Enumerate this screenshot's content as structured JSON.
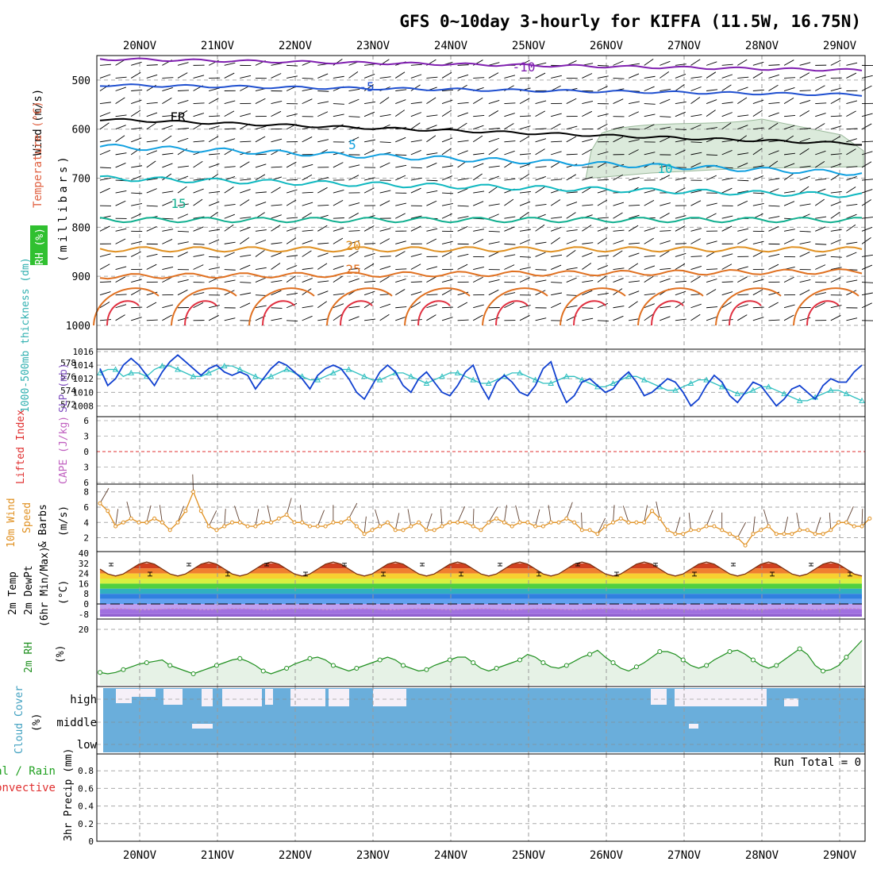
{
  "title": "GFS 0~10day 3-hourly for KIFFA (11.5W, 16.75N)",
  "dates": [
    "20NOV",
    "21NOV",
    "22NOV",
    "23NOV",
    "24NOV",
    "25NOV",
    "26NOV",
    "27NOV",
    "28NOV",
    "29NOV"
  ],
  "panels": {
    "upper": {
      "label_wind": "Wind (m/s)",
      "label_temp": "Temperature (°C)",
      "label_rh": "RH (%)",
      "axis_label": "(millibars)"
    },
    "slp": {
      "label_thk": "1000-500mb thickness (dm)",
      "label_slp": "SLP (mb)"
    },
    "li": {
      "label_li": "Lifted Index",
      "label_cape": "CAPE (J/kg)"
    },
    "wind10": {
      "label_a": "10m Wind",
      "label_b": "Speed",
      "label_c": "& Barbs",
      "unit": "(m/s)"
    },
    "temp2": {
      "label_a": "2m Temp",
      "label_b": "2m DewPt",
      "label_c": "(6hr Min/Max)",
      "unit": "(°C)"
    },
    "rh2": {
      "label": "2m RH",
      "unit": "(%)"
    },
    "cloud": {
      "label": "Cloud Cover",
      "unit": "(%)",
      "levels": [
        "high",
        "middle",
        "low"
      ]
    },
    "precip": {
      "label_a": "Total / Rain",
      "label_b": "Convective",
      "label_c": "3hr Precip (mm)",
      "run_total": "Run Total = 0"
    }
  },
  "chart_data": [
    {
      "type": "line",
      "panel": "upper_air",
      "ylabel": "millibars",
      "yticks": [
        500,
        600,
        700,
        800,
        900,
        1000
      ],
      "ylim": [
        450,
        1000
      ],
      "contour_labels": [
        "-10",
        "-5",
        "FR",
        "5",
        "10",
        "15",
        "20",
        "25"
      ],
      "isotherms": [
        {
          "label": "-10",
          "color": "#8020b0",
          "p_start": 457,
          "p_end": 480
        },
        {
          "label": "-5",
          "color": "#2050d0",
          "p_start": 510,
          "p_end": 530
        },
        {
          "label": "FR",
          "color": "#000000",
          "p_start": 580,
          "p_end": 630
        },
        {
          "label": "5",
          "color": "#10a0e0",
          "p_start": 635,
          "p_end": 690
        },
        {
          "label": "10",
          "color": "#10b8c0",
          "p_start": 700,
          "p_end": 735
        },
        {
          "label": "15",
          "color": "#10b090",
          "p_start": 785,
          "p_end": 785
        },
        {
          "label": "20",
          "color": "#e09020",
          "p_start": 845,
          "p_end": 845
        },
        {
          "label": "25",
          "color": "#e07020",
          "p_start": 900,
          "p_end": 890
        }
      ]
    },
    {
      "type": "line",
      "panel": "slp_thickness",
      "yticks_left": [
        572,
        574,
        576,
        578
      ],
      "yticks_right": [
        1008,
        1010,
        1012,
        1014,
        1016
      ],
      "ylim_left": [
        571,
        579
      ],
      "ylim_right": [
        1007,
        1016
      ],
      "series": [
        {
          "name": "SLP (mb)",
          "color": "#1040d0",
          "values": [
            1013.5,
            1011,
            1012,
            1014,
            1015,
            1014,
            1012.5,
            1011,
            1013,
            1014.5,
            1015.5,
            1014.5,
            1013.5,
            1012.5,
            1013.5,
            1014,
            1013,
            1012.5,
            1013,
            1012.5,
            1010.5,
            1012,
            1013.5,
            1014.5,
            1014,
            1013,
            1012,
            1010.5,
            1012.5,
            1013.5,
            1014,
            1013.5,
            1012,
            1010,
            1009,
            1011,
            1013,
            1014,
            1013,
            1011,
            1010,
            1012,
            1013,
            1011.5,
            1010,
            1009.5,
            1011,
            1013,
            1014,
            1011,
            1009,
            1011.5,
            1012.5,
            1011.5,
            1010,
            1009.5,
            1011,
            1013.5,
            1014.5,
            1011,
            1008.5,
            1009.5,
            1011.5,
            1012,
            1011,
            1010,
            1010.5,
            1012,
            1013,
            1011.5,
            1009.5,
            1010,
            1011,
            1012,
            1011.5,
            1010,
            1008,
            1009,
            1011,
            1012.5,
            1011.5,
            1009.5,
            1008.5,
            1010,
            1011.5,
            1011,
            1009.5,
            1008,
            1009,
            1010.5,
            1011,
            1010,
            1009,
            1011,
            1012,
            1011.5,
            1011.5,
            1013,
            1014
          ]
        },
        {
          "name": "1000-500mb thickness (dm)",
          "color": "#30c0c0",
          "values": [
            576.5,
            577,
            577,
            576,
            576.5,
            576.5,
            576,
            577,
            577.5,
            577.5,
            577,
            576.5,
            576,
            576,
            576.5,
            577,
            577.5,
            577.5,
            577,
            576.5,
            576,
            575.5,
            576,
            576.5,
            577,
            576.5,
            576,
            575.5,
            575.5,
            576,
            576.5,
            577,
            577,
            576.5,
            576,
            575.5,
            575.5,
            576,
            576.5,
            576.5,
            576,
            575.5,
            575,
            575.5,
            576,
            576.5,
            576.5,
            576,
            575.5,
            575,
            575,
            575.5,
            576,
            576.5,
            576.5,
            576,
            575.5,
            575,
            575,
            575.5,
            576,
            576,
            575.5,
            575,
            574.5,
            574.5,
            575,
            575.5,
            576,
            576,
            575.5,
            575,
            574.5,
            574,
            574,
            574.5,
            575,
            575.5,
            575.5,
            575,
            574.5,
            574,
            573.5,
            573.5,
            574,
            574.5,
            574.5,
            574,
            573.5,
            573,
            572.5,
            572.5,
            573,
            573.5,
            574,
            574,
            573.5,
            573,
            572.5
          ]
        }
      ]
    },
    {
      "type": "line",
      "panel": "lifted_index",
      "yticks": [
        -6,
        -3,
        0,
        3,
        6
      ],
      "ylim": [
        -6,
        6
      ],
      "reference_line": 0
    },
    {
      "type": "line",
      "panel": "wind10m",
      "ylabel": "(m/s)",
      "yticks": [
        2,
        4,
        6,
        8
      ],
      "ylim": [
        0.5,
        8.8
      ],
      "series": [
        {
          "name": "10m Wind Speed",
          "color": "#e09020",
          "values": [
            6.5,
            5.5,
            3.5,
            4,
            4.5,
            4,
            4,
            4.5,
            4,
            3,
            4,
            5.5,
            8,
            5.5,
            3.5,
            3,
            3.5,
            4,
            4,
            3.5,
            3.5,
            4,
            4,
            4.5,
            5,
            4,
            4,
            3.5,
            3.5,
            3.5,
            4,
            4,
            4.5,
            3.5,
            2.5,
            3,
            3.5,
            4,
            3,
            3,
            3.5,
            4,
            3,
            3,
            3.5,
            4,
            4,
            4,
            3.5,
            3,
            4,
            4.5,
            4,
            3.5,
            4,
            4,
            3.5,
            3.5,
            4,
            4,
            4.5,
            4,
            3,
            3,
            2.5,
            3.5,
            4,
            4.5,
            4,
            4,
            4,
            5.5,
            4.5,
            3,
            2.5,
            2.5,
            3,
            3,
            3.5,
            3.5,
            3,
            2.5,
            2,
            1,
            2.5,
            3,
            3.5,
            2.5,
            2.5,
            2.5,
            3,
            3,
            2.5,
            2.5,
            3,
            4,
            4,
            3.5,
            3.5,
            4.5
          ]
        }
      ]
    },
    {
      "type": "area",
      "panel": "temp2m",
      "ylabel": "(°C)",
      "yticks": [
        -8,
        0,
        8,
        16,
        24,
        32,
        40
      ],
      "ylim": [
        -10,
        40
      ],
      "series": [
        {
          "name": "2m Temp",
          "color": "#c84010",
          "daily_max": 33,
          "daily_min": 22
        },
        {
          "name": "2m DewPt",
          "color": "#9060c0",
          "values_approx": -4
        }
      ]
    },
    {
      "type": "area",
      "panel": "rh2m",
      "ylabel": "(%)",
      "yticks": [
        20
      ],
      "ylim": [
        0,
        22
      ],
      "series": [
        {
          "name": "2m RH",
          "color": "#209020",
          "values": [
            4.5,
            4,
            4.5,
            5.5,
            6.5,
            7.5,
            8,
            8.5,
            9,
            7,
            6,
            5,
            4,
            5,
            6,
            7,
            8,
            9,
            9.5,
            8.5,
            7,
            5,
            4,
            5,
            6,
            7.5,
            8.5,
            9.5,
            10,
            9,
            7,
            6,
            5,
            6,
            7,
            8,
            9,
            10,
            9,
            7,
            6,
            5,
            5.5,
            7,
            8,
            9,
            10,
            10,
            8,
            6,
            5,
            6,
            7,
            8,
            9,
            11,
            10,
            8,
            6.5,
            6,
            7,
            8.5,
            10,
            11,
            12.5,
            10,
            8,
            6,
            5,
            6.5,
            8,
            10,
            12,
            12,
            11,
            9,
            7,
            6,
            7,
            9,
            10.5,
            12,
            12.5,
            11,
            9,
            7,
            6,
            7,
            9,
            11,
            13,
            11,
            7,
            5,
            5.5,
            7,
            10,
            13,
            16
          ]
        }
      ]
    },
    {
      "type": "area",
      "panel": "cloud_cover",
      "ylabel": "(%)",
      "levels": [
        "high",
        "middle",
        "low"
      ],
      "note": "high cloud layer nearly full, middle and low layers mostly covered"
    },
    {
      "type": "bar",
      "panel": "precip",
      "ylabel": "3hr Precip (mm)",
      "yticks": [
        0,
        0.2,
        0.4,
        0.6,
        0.8
      ],
      "ylim": [
        0,
        1
      ],
      "values": [],
      "run_total": 0
    }
  ]
}
